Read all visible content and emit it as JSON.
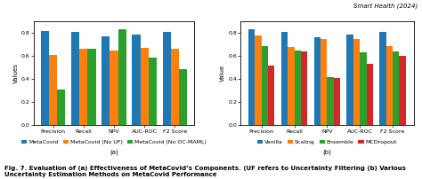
{
  "title": "Smart Health (2024)",
  "caption": "Fig. 7. Evaluation of (a) Effectiveness of MetaCovid’s Components. (UF refers to Uncertainty Filtering (b) Various Uncertainty Estimation Methods on MetaCovid Performance",
  "chart_data": [
    {
      "type": "bar",
      "categories": [
        "Precision",
        "Recall",
        "NPV",
        "AUC-ROC",
        "F2 Score"
      ],
      "series": [
        {
          "name": "MetaCovid",
          "values": [
            0.82,
            0.81,
            0.77,
            0.79,
            0.81
          ]
        },
        {
          "name": "MetaCovid (No UF)",
          "values": [
            0.61,
            0.66,
            0.65,
            0.67,
            0.66
          ]
        },
        {
          "name": "MetaCovid (No OC-MAML)",
          "values": [
            0.31,
            0.66,
            0.83,
            0.59,
            0.49
          ]
        }
      ],
      "y_label": "Values",
      "ylim": [
        0.0,
        0.9
      ],
      "yticks": [
        0.0,
        0.2,
        0.4,
        0.6,
        0.8
      ],
      "legend": "upper center",
      "annotations": [
        "(a)"
      ]
    },
    {
      "type": "bar",
      "categories": [
        "Precision",
        "Recall",
        "NPV",
        "AUC-ROC",
        "F2 Score"
      ],
      "series": [
        {
          "name": "Vanilla",
          "values": [
            0.83,
            0.81,
            0.76,
            0.79,
            0.81
          ]
        },
        {
          "name": "Scaling",
          "values": [
            0.78,
            0.68,
            0.75,
            0.75,
            0.69
          ]
        },
        {
          "name": "Ensemble",
          "values": [
            0.69,
            0.65,
            0.42,
            0.63,
            0.64
          ]
        },
        {
          "name": "MCDropout",
          "values": [
            0.52,
            0.64,
            0.41,
            0.53,
            0.6
          ]
        }
      ],
      "y_label": "Value",
      "ylim": [
        0.0,
        0.9
      ],
      "yticks": [
        0.0,
        0.2,
        0.4,
        0.6,
        0.8
      ],
      "legend": "upper center",
      "annotations": [
        "(b)"
      ]
    }
  ]
}
